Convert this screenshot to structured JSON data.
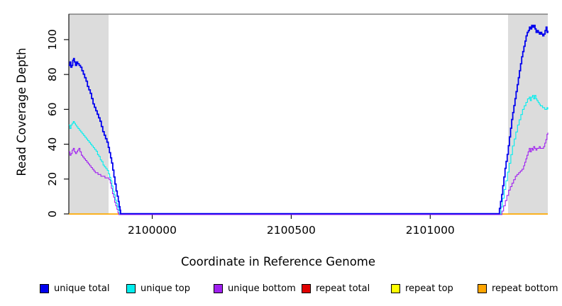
{
  "figure": {
    "xlabel": "Coordinate in Reference Genome",
    "ylabel": "Read Coverage Depth"
  },
  "legend": {
    "items": [
      {
        "label": "unique total",
        "color": "#0000EE"
      },
      {
        "label": "unique top",
        "color": "#00EEEE"
      },
      {
        "label": "unique bottom",
        "color": "#A020F0"
      },
      {
        "label": "repeat total",
        "color": "#E00000"
      },
      {
        "label": "repeat top",
        "color": "#FFFF00"
      },
      {
        "label": "repeat bottom",
        "color": "#FFA500"
      }
    ]
  },
  "chart_data": {
    "type": "line",
    "title": "",
    "xlabel": "Coordinate in Reference Genome",
    "ylabel": "Read Coverage Depth",
    "xlim": [
      2099700,
      2101423
    ],
    "ylim": [
      0,
      114.6
    ],
    "x_ticks": [
      2100000,
      2100500,
      2101000
    ],
    "y_ticks": [
      0,
      20,
      40,
      60,
      80,
      100
    ],
    "grid": false,
    "legend_position": "bottom",
    "border_color": "#808080",
    "shaded_regions": [
      {
        "x0": 2099700,
        "x1": 2099843,
        "color": "#DCDCDC"
      },
      {
        "x0": 2101280,
        "x1": 2101423,
        "color": "#DCDCDC"
      }
    ],
    "series": [
      {
        "name": "unique total",
        "color": "#0000EE",
        "points": [
          [
            2099700,
            85
          ],
          [
            2099704,
            87
          ],
          [
            2099707,
            84
          ],
          [
            2099711,
            85
          ],
          [
            2099714,
            88
          ],
          [
            2099717,
            89
          ],
          [
            2099720,
            87
          ],
          [
            2099724,
            85
          ],
          [
            2099728,
            87
          ],
          [
            2099732,
            86
          ],
          [
            2099737,
            85
          ],
          [
            2099742,
            84
          ],
          [
            2099747,
            82
          ],
          [
            2099752,
            80
          ],
          [
            2099757,
            78
          ],
          [
            2099762,
            76
          ],
          [
            2099767,
            73
          ],
          [
            2099772,
            71
          ],
          [
            2099777,
            69
          ],
          [
            2099782,
            66
          ],
          [
            2099787,
            63
          ],
          [
            2099792,
            61
          ],
          [
            2099797,
            59
          ],
          [
            2099802,
            57
          ],
          [
            2099807,
            55
          ],
          [
            2099812,
            53
          ],
          [
            2099817,
            50
          ],
          [
            2099822,
            47
          ],
          [
            2099827,
            45
          ],
          [
            2099832,
            43
          ],
          [
            2099837,
            41
          ],
          [
            2099842,
            38
          ],
          [
            2099846,
            35
          ],
          [
            2099850,
            32
          ],
          [
            2099854,
            29
          ],
          [
            2099858,
            25
          ],
          [
            2099862,
            21
          ],
          [
            2099866,
            17
          ],
          [
            2099870,
            13
          ],
          [
            2099874,
            10
          ],
          [
            2099878,
            7
          ],
          [
            2099881,
            4
          ],
          [
            2099884,
            2
          ],
          [
            2099886,
            0
          ],
          [
            2101245,
            0
          ],
          [
            2101249,
            3
          ],
          [
            2101253,
            7
          ],
          [
            2101257,
            11
          ],
          [
            2101261,
            16
          ],
          [
            2101265,
            21
          ],
          [
            2101269,
            26
          ],
          [
            2101273,
            30
          ],
          [
            2101277,
            34
          ],
          [
            2101281,
            39
          ],
          [
            2101285,
            44
          ],
          [
            2101289,
            49
          ],
          [
            2101293,
            54
          ],
          [
            2101297,
            58
          ],
          [
            2101301,
            62
          ],
          [
            2101305,
            66
          ],
          [
            2101309,
            70
          ],
          [
            2101313,
            74
          ],
          [
            2101317,
            78
          ],
          [
            2101321,
            82
          ],
          [
            2101325,
            86
          ],
          [
            2101329,
            90
          ],
          [
            2101333,
            93
          ],
          [
            2101337,
            96
          ],
          [
            2101341,
            99
          ],
          [
            2101345,
            102
          ],
          [
            2101349,
            104
          ],
          [
            2101353,
            105
          ],
          [
            2101357,
            107
          ],
          [
            2101361,
            106
          ],
          [
            2101365,
            108
          ],
          [
            2101369,
            107
          ],
          [
            2101373,
            108
          ],
          [
            2101377,
            106
          ],
          [
            2101381,
            104
          ],
          [
            2101385,
            105
          ],
          [
            2101389,
            104
          ],
          [
            2101393,
            103
          ],
          [
            2101397,
            104
          ],
          [
            2101401,
            103
          ],
          [
            2101405,
            102
          ],
          [
            2101409,
            103
          ],
          [
            2101413,
            105
          ],
          [
            2101417,
            107
          ],
          [
            2101420,
            104
          ],
          [
            2101423,
            105
          ]
        ]
      },
      {
        "name": "unique top",
        "color": "#00EEEE",
        "points": [
          [
            2099700,
            51
          ],
          [
            2099704,
            49
          ],
          [
            2099708,
            51
          ],
          [
            2099712,
            52
          ],
          [
            2099716,
            53
          ],
          [
            2099720,
            52
          ],
          [
            2099724,
            51
          ],
          [
            2099728,
            50
          ],
          [
            2099733,
            49
          ],
          [
            2099738,
            48
          ],
          [
            2099743,
            47
          ],
          [
            2099748,
            46
          ],
          [
            2099753,
            45
          ],
          [
            2099758,
            44
          ],
          [
            2099763,
            43
          ],
          [
            2099768,
            42
          ],
          [
            2099773,
            41
          ],
          [
            2099778,
            40
          ],
          [
            2099783,
            39
          ],
          [
            2099788,
            38
          ],
          [
            2099793,
            37
          ],
          [
            2099798,
            36
          ],
          [
            2099803,
            34
          ],
          [
            2099808,
            33
          ],
          [
            2099813,
            31
          ],
          [
            2099818,
            30
          ],
          [
            2099823,
            28
          ],
          [
            2099828,
            27
          ],
          [
            2099833,
            26
          ],
          [
            2099838,
            25
          ],
          [
            2099843,
            23
          ],
          [
            2099847,
            21
          ],
          [
            2099851,
            19
          ],
          [
            2099855,
            16
          ],
          [
            2099859,
            13
          ],
          [
            2099863,
            11
          ],
          [
            2099867,
            8
          ],
          [
            2099871,
            6
          ],
          [
            2099875,
            4
          ],
          [
            2099879,
            2
          ],
          [
            2099883,
            0
          ],
          [
            2101248,
            0
          ],
          [
            2101254,
            4
          ],
          [
            2101260,
            9
          ],
          [
            2101266,
            14
          ],
          [
            2101272,
            19
          ],
          [
            2101278,
            24
          ],
          [
            2101284,
            29
          ],
          [
            2101290,
            34
          ],
          [
            2101296,
            39
          ],
          [
            2101302,
            43
          ],
          [
            2101308,
            47
          ],
          [
            2101314,
            51
          ],
          [
            2101320,
            54
          ],
          [
            2101326,
            57
          ],
          [
            2101332,
            60
          ],
          [
            2101338,
            62
          ],
          [
            2101344,
            64
          ],
          [
            2101350,
            66
          ],
          [
            2101356,
            67
          ],
          [
            2101360,
            65
          ],
          [
            2101364,
            67
          ],
          [
            2101368,
            68
          ],
          [
            2101372,
            66
          ],
          [
            2101376,
            68
          ],
          [
            2101380,
            66
          ],
          [
            2101384,
            65
          ],
          [
            2101388,
            64
          ],
          [
            2101392,
            63
          ],
          [
            2101396,
            62
          ],
          [
            2101400,
            62
          ],
          [
            2101404,
            61
          ],
          [
            2101408,
            61
          ],
          [
            2101412,
            60
          ],
          [
            2101416,
            60
          ],
          [
            2101420,
            61
          ],
          [
            2101423,
            60
          ]
        ]
      },
      {
        "name": "unique bottom",
        "color": "#A020F0",
        "points": [
          [
            2099700,
            36
          ],
          [
            2099704,
            34
          ],
          [
            2099708,
            35
          ],
          [
            2099712,
            37
          ],
          [
            2099716,
            38
          ],
          [
            2099720,
            36
          ],
          [
            2099724,
            35
          ],
          [
            2099728,
            36
          ],
          [
            2099732,
            37
          ],
          [
            2099736,
            38
          ],
          [
            2099740,
            36
          ],
          [
            2099745,
            34
          ],
          [
            2099750,
            33
          ],
          [
            2099755,
            32
          ],
          [
            2099760,
            31
          ],
          [
            2099765,
            30
          ],
          [
            2099770,
            29
          ],
          [
            2099775,
            28
          ],
          [
            2099780,
            27
          ],
          [
            2099785,
            26
          ],
          [
            2099790,
            25
          ],
          [
            2099795,
            24
          ],
          [
            2099800,
            24
          ],
          [
            2099805,
            23
          ],
          [
            2099810,
            23
          ],
          [
            2099815,
            22
          ],
          [
            2099820,
            22
          ],
          [
            2099825,
            22
          ],
          [
            2099830,
            21
          ],
          [
            2099835,
            21
          ],
          [
            2099840,
            21
          ],
          [
            2099845,
            20
          ],
          [
            2099849,
            18
          ],
          [
            2099853,
            15
          ],
          [
            2099857,
            12
          ],
          [
            2099861,
            10
          ],
          [
            2099865,
            7
          ],
          [
            2099869,
            5
          ],
          [
            2099873,
            3
          ],
          [
            2099877,
            1
          ],
          [
            2099880,
            0
          ],
          [
            2101252,
            0
          ],
          [
            2101258,
            2
          ],
          [
            2101264,
            5
          ],
          [
            2101270,
            8
          ],
          [
            2101276,
            11
          ],
          [
            2101282,
            14
          ],
          [
            2101288,
            16
          ],
          [
            2101294,
            18
          ],
          [
            2101300,
            20
          ],
          [
            2101306,
            22
          ],
          [
            2101312,
            23
          ],
          [
            2101318,
            24
          ],
          [
            2101324,
            25
          ],
          [
            2101330,
            26
          ],
          [
            2101336,
            28
          ],
          [
            2101340,
            30
          ],
          [
            2101344,
            32
          ],
          [
            2101348,
            34
          ],
          [
            2101352,
            36
          ],
          [
            2101356,
            38
          ],
          [
            2101360,
            36
          ],
          [
            2101364,
            38
          ],
          [
            2101368,
            37
          ],
          [
            2101372,
            39
          ],
          [
            2101376,
            38
          ],
          [
            2101380,
            37
          ],
          [
            2101384,
            38
          ],
          [
            2101388,
            38
          ],
          [
            2101392,
            39
          ],
          [
            2101396,
            38
          ],
          [
            2101400,
            38
          ],
          [
            2101404,
            38
          ],
          [
            2101408,
            39
          ],
          [
            2101412,
            41
          ],
          [
            2101416,
            43
          ],
          [
            2101420,
            46
          ],
          [
            2101423,
            47
          ]
        ]
      },
      {
        "name": "repeat total",
        "color": "#E00000",
        "points": [
          [
            2099700,
            0
          ],
          [
            2101423,
            0
          ]
        ]
      },
      {
        "name": "repeat top",
        "color": "#FFFF00",
        "points": [
          [
            2099700,
            0
          ],
          [
            2101423,
            0
          ]
        ]
      },
      {
        "name": "repeat bottom",
        "color": "#FFA500",
        "points": [
          [
            2099700,
            0
          ],
          [
            2101423,
            0
          ]
        ]
      }
    ]
  }
}
